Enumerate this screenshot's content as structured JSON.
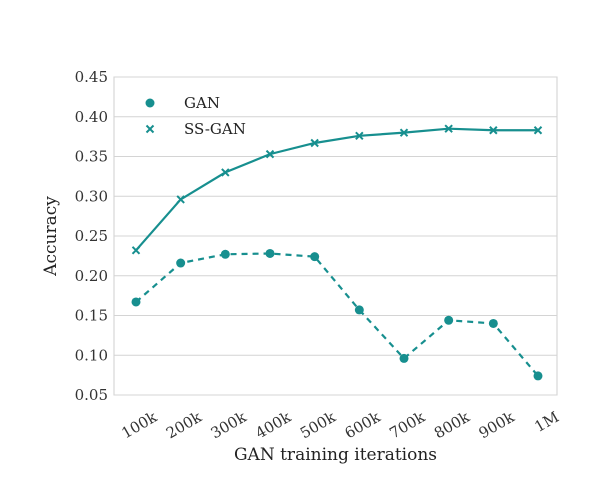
{
  "chart_data": {
    "type": "line",
    "title": "",
    "xlabel": "GAN training iterations",
    "ylabel": "Accuracy",
    "categories": [
      "100k",
      "200k",
      "300k",
      "400k",
      "500k",
      "600k",
      "700k",
      "800k",
      "900k",
      "1M"
    ],
    "ylim": [
      0.05,
      0.45
    ],
    "yticks": [
      "0.05",
      "0.10",
      "0.15",
      "0.20",
      "0.25",
      "0.30",
      "0.35",
      "0.40",
      "0.45"
    ],
    "grid": "horizontal",
    "legend_position": "top-left",
    "series": [
      {
        "name": "GAN",
        "marker": "circle",
        "line_style": "dashed",
        "color": "#178f8f",
        "values": [
          0.167,
          0.216,
          0.227,
          0.228,
          0.224,
          0.157,
          0.096,
          0.144,
          0.14,
          0.074
        ]
      },
      {
        "name": "SS-GAN",
        "marker": "x",
        "line_style": "solid",
        "color": "#178f8f",
        "values": [
          0.232,
          0.296,
          0.33,
          0.353,
          0.367,
          0.376,
          0.38,
          0.385,
          0.383,
          0.383
        ]
      }
    ]
  }
}
